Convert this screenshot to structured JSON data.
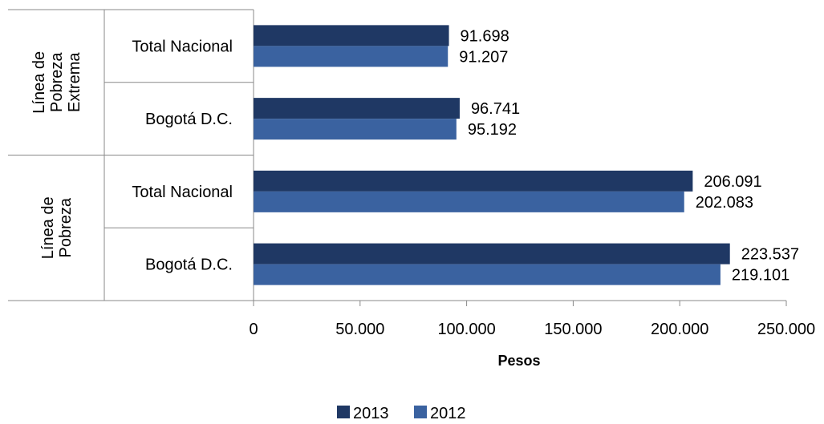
{
  "chart_data": {
    "type": "bar",
    "orientation": "horizontal",
    "groups": [
      {
        "label": [
          "Línea de",
          "Pobreza",
          "Extrema"
        ],
        "categories": [
          "Total Nacional",
          "Bogotá D.C."
        ]
      },
      {
        "label": [
          "Línea de",
          "Pobreza"
        ],
        "categories": [
          "Total Nacional",
          "Bogotá D.C."
        ]
      }
    ],
    "categories": [
      "Total Nacional",
      "Bogotá D.C.",
      "Total Nacional",
      "Bogotá D.C."
    ],
    "series": [
      {
        "name": "2013",
        "color": "#1F3864",
        "values": [
          91698,
          96741,
          206091,
          223537
        ],
        "labels": [
          "91.698",
          "96.741",
          "206.091",
          "223.537"
        ]
      },
      {
        "name": "2012",
        "color": "#3A62A0",
        "values": [
          91207,
          95192,
          202083,
          219101
        ],
        "labels": [
          "91.207",
          "95.192",
          "202.083",
          "219.101"
        ]
      }
    ],
    "xlabel": "Pesos",
    "xlim": [
      0,
      250000
    ],
    "xticks": [
      0,
      50000,
      100000,
      150000,
      200000,
      250000
    ],
    "xtick_labels": [
      "0",
      "50.000",
      "100.000",
      "150.000",
      "200.000",
      "250.000"
    ],
    "legend": {
      "position": "bottom",
      "entries": [
        "2013",
        "2012"
      ]
    },
    "grid": false
  }
}
